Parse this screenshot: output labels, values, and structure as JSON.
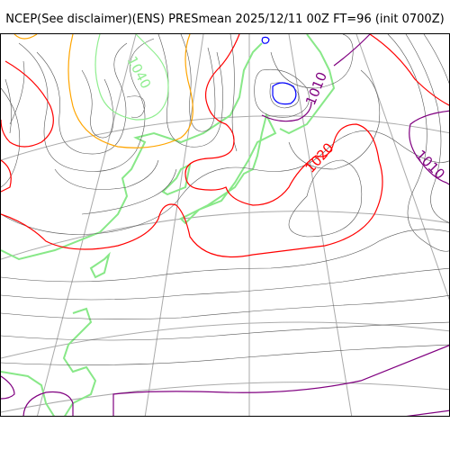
{
  "title": "NCEP(See disclaimer)(ENS) PRESmean 2025/12/11 00Z FT=96 (init 0700Z)",
  "contour_labels": {
    "label_1040": "1040",
    "label_1010_north": "1010",
    "label_1020": "1020",
    "label_1010_east": "1010"
  },
  "colors": {
    "isobar_thin": "#555555",
    "isobar_1020": "#ff0000",
    "isobar_1010": "#800080",
    "isobar_1040": "#90ee90",
    "isobar_1000": "#0000ff",
    "isobar_1030": "#ffa500",
    "coastline": "#88e888",
    "graticule": "#aaaaaa"
  }
}
